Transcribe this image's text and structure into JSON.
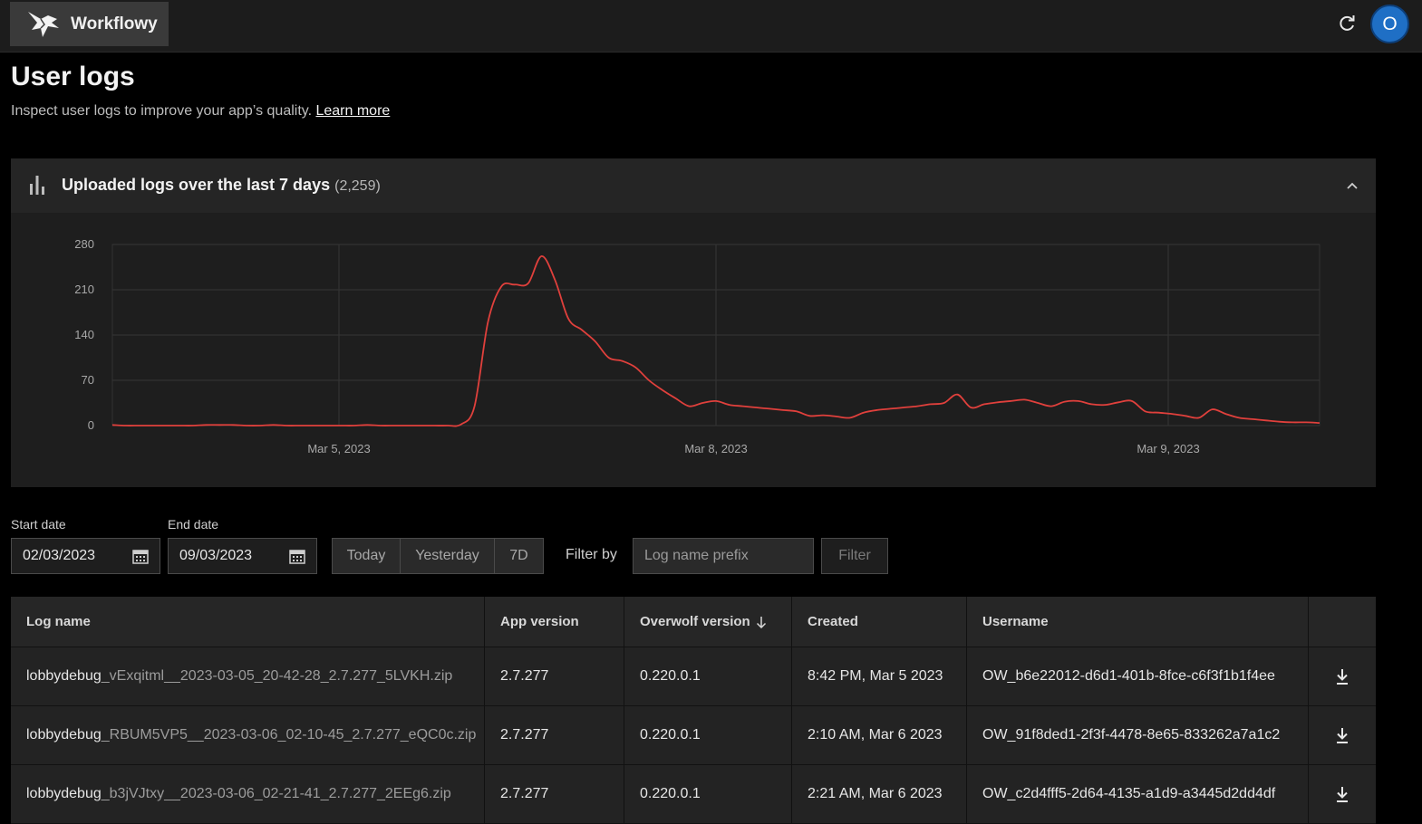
{
  "app": {
    "name": "Workflowy",
    "avatar_initial": "O"
  },
  "page": {
    "title": "User logs",
    "subtitle": "Inspect user logs to improve your app’s quality.",
    "learn_more": "Learn more"
  },
  "panel": {
    "title": "Uploaded logs over the last 7 days",
    "count": "(2,259)"
  },
  "chart_data": {
    "type": "line",
    "color": "#e0403c",
    "y_ticks": [
      0,
      70,
      140,
      210,
      280
    ],
    "ylim": [
      0,
      280
    ],
    "x_tick_labels": [
      "Mar 5, 2023",
      "Mar 8, 2023",
      "Mar 9, 2023"
    ],
    "series": [
      {
        "values": [
          1,
          0,
          0,
          0,
          0,
          0,
          0,
          1,
          1,
          1,
          0,
          0,
          1,
          0,
          0,
          0,
          0,
          0,
          0,
          1,
          0,
          0,
          0,
          0,
          0,
          0,
          2,
          30,
          160,
          215,
          218,
          220,
          262,
          225,
          165,
          148,
          130,
          105,
          100,
          90,
          70,
          55,
          42,
          30,
          35,
          38,
          32,
          30,
          28,
          26,
          24,
          22,
          15,
          16,
          14,
          12,
          20,
          24,
          26,
          28,
          30,
          33,
          35,
          48,
          28,
          33,
          36,
          38,
          40,
          35,
          30,
          37,
          38,
          33,
          32,
          36,
          38,
          22,
          20,
          18,
          15,
          12,
          25,
          18,
          12,
          10,
          8,
          6,
          5,
          5,
          4
        ]
      }
    ]
  },
  "filters": {
    "start_label": "Start date",
    "start_value": "02/03/2023",
    "end_label": "End date",
    "end_value": "09/03/2023",
    "ranges": [
      "Today",
      "Yesterday",
      "7D"
    ],
    "filter_by": "Filter by",
    "prefix_placeholder": "Log name prefix",
    "filter_button": "Filter"
  },
  "table": {
    "headers": [
      "Log name",
      "App version",
      "Overwolf version",
      "Created",
      "Username"
    ],
    "rows": [
      {
        "prefix": "lobbydebug",
        "rest": "_vExqitml__2023-03-05_20-42-28_2.7.277_5LVKH.zip",
        "app_version": "2.7.277",
        "ow_version": "0.220.0.1",
        "created": "8:42 PM, Mar 5 2023",
        "username": "OW_b6e22012-d6d1-401b-8fce-c6f3f1b1f4ee"
      },
      {
        "prefix": "lobbydebug",
        "rest": "_RBUM5VP5__2023-03-06_02-10-45_2.7.277_eQC0c.zip",
        "app_version": "2.7.277",
        "ow_version": "0.220.0.1",
        "created": "2:10 AM, Mar 6 2023",
        "username": "OW_91f8ded1-2f3f-4478-8e65-833262a7a1c2"
      },
      {
        "prefix": "lobbydebug",
        "rest": "_b3jVJtxy__2023-03-06_02-21-41_2.7.277_2EEg6.zip",
        "app_version": "2.7.277",
        "ow_version": "0.220.0.1",
        "created": "2:21 AM, Mar 6 2023",
        "username": "OW_c2d4fff5-2d64-4135-a1d9-a3445d2dd4df"
      }
    ]
  }
}
